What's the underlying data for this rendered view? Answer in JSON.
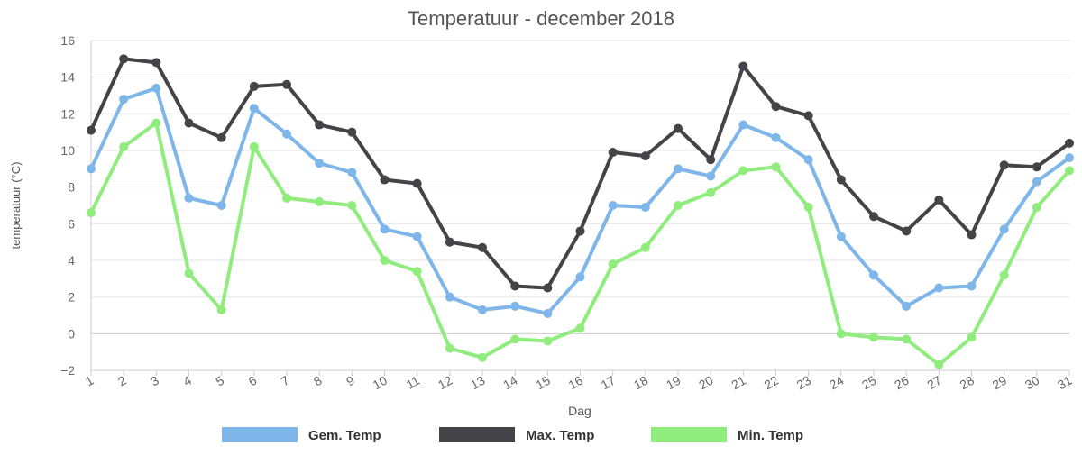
{
  "chart_data": {
    "type": "line",
    "title": "Temperatuur - december 2018",
    "xlabel": "Dag",
    "ylabel": "temperatuur (°C)",
    "x": [
      "1",
      "2",
      "3",
      "4",
      "5",
      "6",
      "7",
      "8",
      "9",
      "10",
      "11",
      "12",
      "13",
      "14",
      "15",
      "16",
      "17",
      "18",
      "19",
      "20",
      "21",
      "22",
      "23",
      "24",
      "25",
      "26",
      "27",
      "28",
      "29",
      "30",
      "31"
    ],
    "ylim": [
      -2,
      16
    ],
    "yticks": [
      -2,
      0,
      2,
      4,
      6,
      8,
      10,
      12,
      14,
      16
    ],
    "grid": true,
    "legend_position": "bottom",
    "series": [
      {
        "name": "Gem. Temp",
        "color": "#7eb6ea",
        "values": [
          9.0,
          12.8,
          13.4,
          7.4,
          7.0,
          12.3,
          10.9,
          9.3,
          8.8,
          5.7,
          5.3,
          2.0,
          1.3,
          1.5,
          1.1,
          3.1,
          7.0,
          6.9,
          9.0,
          8.6,
          11.4,
          10.7,
          9.5,
          5.3,
          3.2,
          1.5,
          2.5,
          2.6,
          5.7,
          8.3,
          9.6
        ]
      },
      {
        "name": "Max. Temp",
        "color": "#434348",
        "values": [
          11.1,
          15.0,
          14.8,
          11.5,
          10.7,
          13.5,
          13.6,
          11.4,
          11.0,
          8.4,
          8.2,
          5.0,
          4.7,
          2.6,
          2.5,
          5.6,
          9.9,
          9.7,
          11.2,
          9.5,
          14.6,
          12.4,
          11.9,
          8.4,
          6.4,
          5.6,
          7.3,
          5.4,
          9.2,
          9.1,
          10.4
        ]
      },
      {
        "name": "Min. Temp",
        "color": "#90ed7d",
        "values": [
          6.6,
          10.2,
          11.5,
          3.3,
          1.3,
          10.2,
          7.4,
          7.2,
          7.0,
          4.0,
          3.4,
          -0.8,
          -1.3,
          -0.3,
          -0.4,
          0.3,
          3.8,
          4.7,
          7.0,
          7.7,
          8.9,
          9.1,
          6.9,
          0.0,
          -0.2,
          -0.3,
          -1.7,
          -0.2,
          3.2,
          6.9,
          8.9
        ]
      }
    ]
  }
}
